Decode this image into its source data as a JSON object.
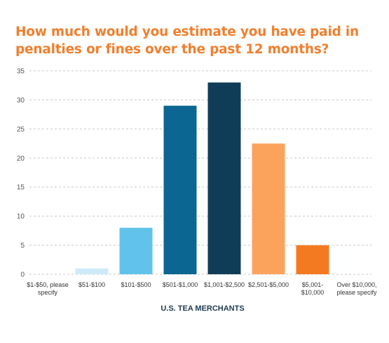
{
  "chart_data": {
    "type": "bar",
    "title": "How much would you estimate you have paid in penalties or fines over the past 12 months?",
    "xlabel": "U.S. TEA MERCHANTS",
    "ylabel": "",
    "ylim": [
      0,
      35
    ],
    "yticks": [
      "0",
      "5",
      "10",
      "15",
      "20",
      "25",
      "30",
      "35"
    ],
    "grid": true,
    "categories": [
      "$1-$50, please specify",
      "$51-$100",
      "$101-$500",
      "$501-$1,000",
      "$1,001-$2,500",
      "$2,501-$5,000",
      "$5,001-$10,000",
      "Over $10,000, please specify"
    ],
    "category_lines": [
      [
        "$1-$50, please",
        "specify"
      ],
      [
        "$51-$100"
      ],
      [
        "$101-$500"
      ],
      [
        "$501-$1,000"
      ],
      [
        "$1,001-$2,500"
      ],
      [
        "$2,501-$5,000"
      ],
      [
        "$5,001-",
        "$10,000"
      ],
      [
        "Over $10,000,",
        "please specify"
      ]
    ],
    "values": [
      0,
      1,
      8,
      29,
      33,
      22.5,
      5,
      0
    ],
    "colors": [
      "#cfeaf7",
      "#cfeaf7",
      "#62c3ea",
      "#0b6791",
      "#0f3d58",
      "#fba35d",
      "#f47a22",
      "#f47a22"
    ]
  }
}
